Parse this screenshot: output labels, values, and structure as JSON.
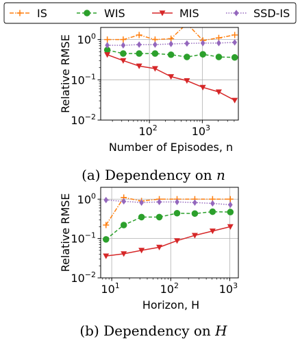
{
  "legend": {
    "entries": [
      {
        "name": "IS",
        "color": "#ff7f0e",
        "marker": "plus",
        "dash": "dashdot"
      },
      {
        "name": "WIS",
        "color": "#2ca02c",
        "marker": "circle",
        "dash": "dashed"
      },
      {
        "name": "MIS",
        "color": "#d62728",
        "marker": "triangle-down",
        "dash": "solid"
      },
      {
        "name": "SSD-IS",
        "color": "#9467bd",
        "marker": "diamond",
        "dash": "dotted"
      }
    ]
  },
  "chart_data": [
    {
      "type": "line",
      "caption_prefix": "(a) Dependency on ",
      "caption_var": "n",
      "xlabel": "Number of Episodes, n",
      "ylabel": "Relative RMSE",
      "xscale": "log",
      "yscale": "log",
      "xlim": [
        12,
        4800
      ],
      "ylim": [
        0.01,
        2.0
      ],
      "xticks": [
        {
          "value": 100,
          "base": "10",
          "exp": "2"
        },
        {
          "value": 1000,
          "base": "10",
          "exp": "3"
        }
      ],
      "yticks": [
        {
          "value": 0.01,
          "base": "10",
          "exp": "−2"
        },
        {
          "value": 0.1,
          "base": "10",
          "exp": "−1"
        },
        {
          "value": 1,
          "base": "10",
          "exp": "0"
        }
      ],
      "grid": true,
      "x": [
        16,
        32,
        64,
        128,
        256,
        512,
        1024,
        2048,
        4096
      ],
      "series": [
        {
          "name": "IS",
          "values": [
            1.0,
            1.0,
            1.3,
            1.0,
            1.05,
            2.5,
            0.95,
            1.1,
            1.3
          ]
        },
        {
          "name": "WIS",
          "values": [
            0.55,
            0.45,
            0.45,
            0.45,
            0.42,
            0.37,
            0.43,
            0.37,
            0.36
          ]
        },
        {
          "name": "MIS",
          "values": [
            0.42,
            0.3,
            0.22,
            0.19,
            0.12,
            0.095,
            0.065,
            0.05,
            0.031
          ]
        },
        {
          "name": "SSD-IS",
          "values": [
            0.72,
            0.72,
            0.75,
            0.75,
            0.78,
            0.8,
            0.82,
            0.82,
            0.85
          ]
        }
      ]
    },
    {
      "type": "line",
      "caption_prefix": "(b) Dependency on ",
      "caption_var": "H",
      "xlabel": "Horizon, H",
      "ylabel": "Relative RMSE",
      "xscale": "log",
      "yscale": "log",
      "xlim": [
        6.5,
        1400
      ],
      "ylim": [
        0.01,
        2.0
      ],
      "xticks": [
        {
          "value": 10,
          "base": "10",
          "exp": "1"
        },
        {
          "value": 100,
          "base": "10",
          "exp": "2"
        },
        {
          "value": 1000,
          "base": "10",
          "exp": "3"
        }
      ],
      "yticks": [
        {
          "value": 0.01,
          "base": "10",
          "exp": "−2"
        },
        {
          "value": 0.1,
          "base": "10",
          "exp": "−1"
        },
        {
          "value": 1,
          "base": "10",
          "exp": "0"
        }
      ],
      "grid": true,
      "x": [
        8,
        16,
        32,
        64,
        128,
        256,
        512,
        1024
      ],
      "series": [
        {
          "name": "IS",
          "values": [
            0.22,
            1.1,
            0.9,
            1.0,
            1.0,
            1.0,
            1.0,
            1.0
          ]
        },
        {
          "name": "WIS",
          "values": [
            0.095,
            0.22,
            0.35,
            0.35,
            0.44,
            0.43,
            0.48,
            0.47
          ]
        },
        {
          "name": "MIS",
          "values": [
            0.036,
            0.041,
            0.05,
            0.06,
            0.088,
            0.12,
            0.155,
            0.2
          ]
        },
        {
          "name": "SSD-IS",
          "values": [
            0.95,
            0.88,
            0.82,
            0.85,
            0.85,
            0.82,
            0.78,
            0.72
          ]
        }
      ]
    }
  ]
}
